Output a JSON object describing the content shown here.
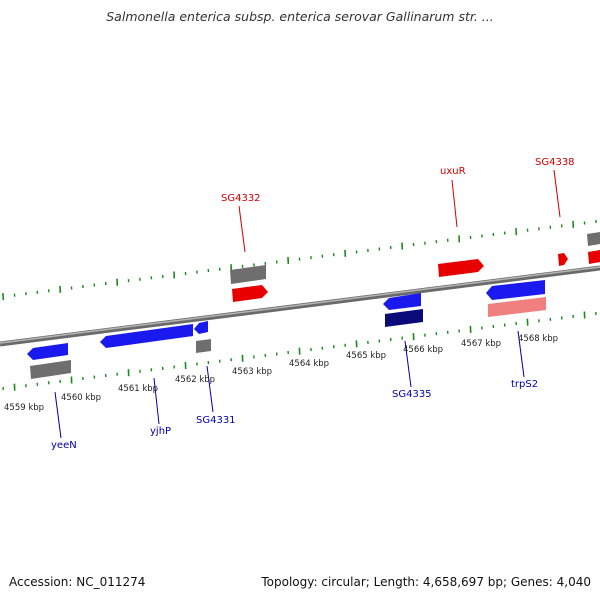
{
  "title": "Salmonella enterica subsp. enterica serovar Gallinarum str. ...",
  "footer": {
    "accession": "Accession: NC_011274",
    "summary": "Topology: circular; Length: 4,658,697 bp; Genes: 4,040"
  },
  "colors": {
    "forward_gene": "#e80000",
    "forward_gene_light": "#f08080",
    "reverse_gene": "#1a1aee",
    "reverse_gene_dark": "#0a0a78",
    "rna_or_other": "#707070",
    "backbone": "#888888",
    "ticks": "#1a8a1a",
    "label_forward": "#cc0000",
    "label_reverse": "#0000aa"
  },
  "scale_labels": [
    "4559 kbp",
    "4560 kbp",
    "4561 kbp",
    "4562 kbp",
    "4563 kbp",
    "4564 kbp",
    "4565 kbp",
    "4566 kbp",
    "4567 kbp",
    "4568 kbp"
  ],
  "gene_labels": {
    "forward": [
      "SG4332",
      "uxuR",
      "SG4338"
    ],
    "reverse": [
      "yeeN",
      "yjhP",
      "SG4331",
      "SG4335",
      "trpS2"
    ]
  }
}
